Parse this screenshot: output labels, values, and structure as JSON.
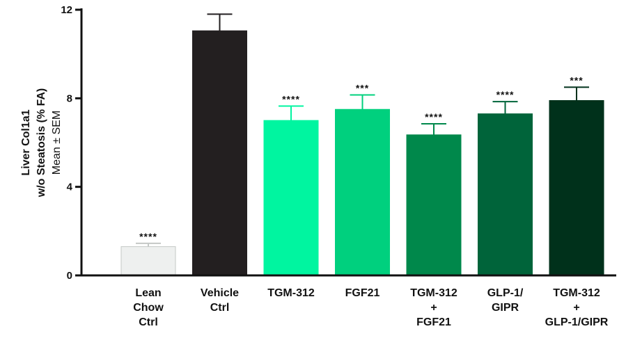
{
  "chart_data": {
    "type": "bar",
    "title": "",
    "ylabel": [
      "Liver Col1a1",
      "w/o Steatosis (% FA)",
      "Mean ± SEM"
    ],
    "xlabel": "",
    "ylim": [
      0,
      12
    ],
    "yticks": [
      "0",
      "4",
      "8",
      "12"
    ],
    "grid": false,
    "categories": [
      [
        "Lean",
        "Chow",
        "Ctrl"
      ],
      [
        "Vehicle",
        "Ctrl"
      ],
      [
        "TGM-312"
      ],
      [
        "FGF21"
      ],
      [
        "TGM-312",
        "+",
        "FGF21"
      ],
      [
        "GLP-1/",
        "GIPR"
      ],
      [
        "TGM-312",
        "+",
        "GLP-1/GIPR"
      ]
    ],
    "values": [
      1.3,
      11.05,
      7.0,
      7.5,
      6.35,
      7.3,
      7.9
    ],
    "errors": [
      0.15,
      0.75,
      0.65,
      0.65,
      0.5,
      0.55,
      0.6
    ],
    "significance": [
      "****",
      "",
      "****",
      "***",
      "****",
      "****",
      "***"
    ],
    "colors": [
      "#eef0ef",
      "#231f20",
      "#00f5a0",
      "#00d07e",
      "#00884b",
      "#00643a",
      "#00311b"
    ],
    "edge_colors": [
      "#c4c8c6",
      "#231f20",
      "#00f5a0",
      "#00d07e",
      "#00884b",
      "#00643a",
      "#00311b"
    ],
    "error_colors": [
      "#c4c8c6",
      "#231f20",
      "#00f5a0",
      "#00d07e",
      "#00884b",
      "#00643a",
      "#00311b"
    ]
  }
}
